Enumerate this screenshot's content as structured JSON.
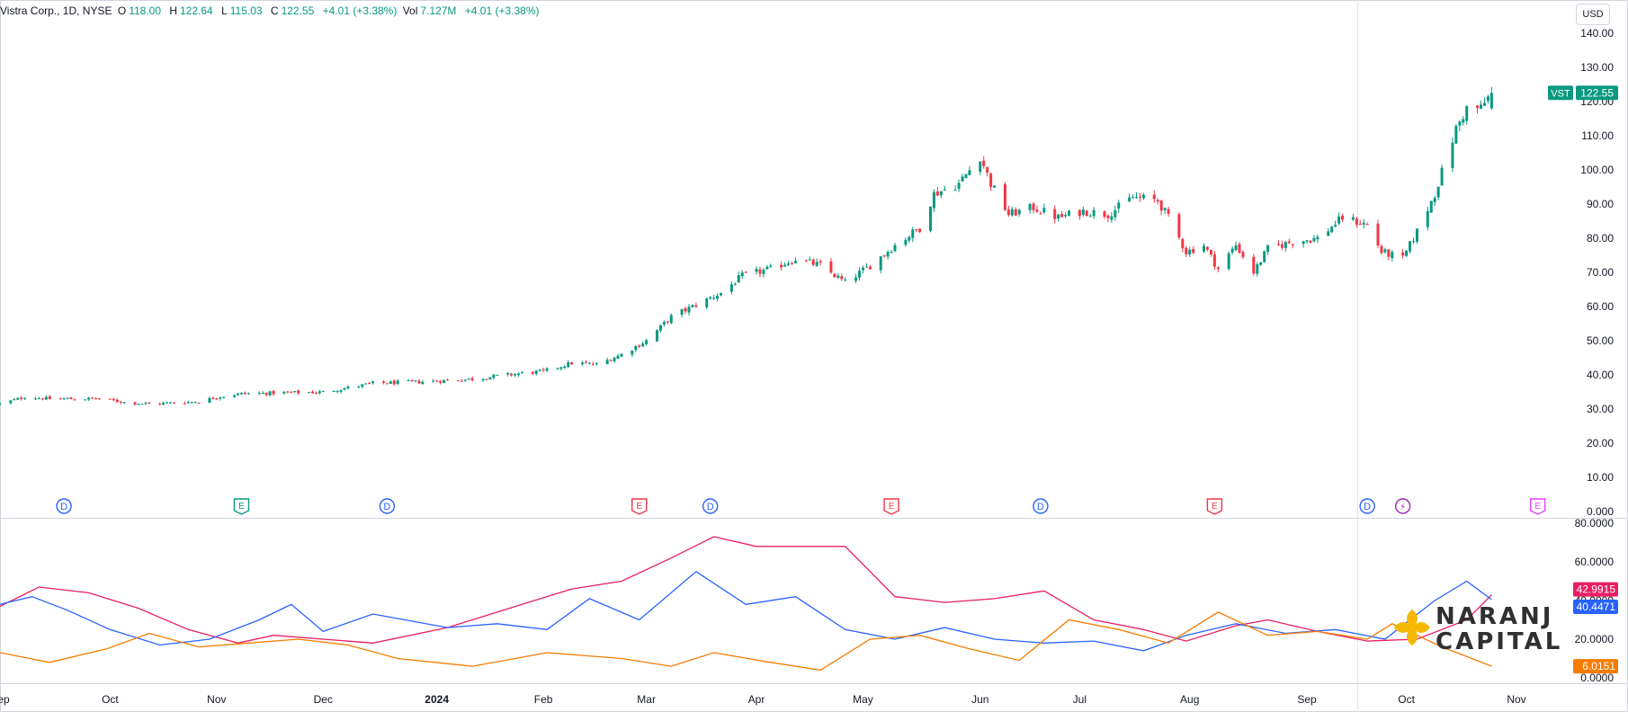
{
  "header": {
    "title": "Vistra Corp., 1D, NYSE",
    "o_label": "O",
    "o_value": "118.00",
    "h_label": "H",
    "h_value": "122.64",
    "l_label": "L",
    "l_value": "115.03",
    "c_label": "C",
    "c_value": "122.55",
    "change": "+4.01 (+3.38%)",
    "vol_label": "Vol",
    "vol_value": "7.127M",
    "vol_change": "+4.01 (+3.38%)"
  },
  "currency_button": "USD",
  "price_badge": {
    "symbol": "VST",
    "value": "122.55"
  },
  "indicator_badges": [
    {
      "value": "42.9915",
      "color": "#e91e63"
    },
    {
      "value": "40.4471",
      "color": "#2962ff"
    },
    {
      "value": "6.0151",
      "color": "#f57c00"
    }
  ],
  "event_markers": [
    {
      "type": "dividend",
      "label": "D",
      "date": "2023-09-19"
    },
    {
      "type": "earnings",
      "label": "E",
      "date": "2023-11-08"
    },
    {
      "type": "dividend",
      "label": "D",
      "date": "2023-12-19"
    },
    {
      "type": "earnings",
      "label": "E",
      "date": "2024-02-28"
    },
    {
      "type": "dividend",
      "label": "D",
      "date": "2024-03-19"
    },
    {
      "type": "earnings",
      "label": "E",
      "date": "2024-05-09"
    },
    {
      "type": "dividend",
      "label": "D",
      "date": "2024-06-20"
    },
    {
      "type": "earnings",
      "label": "E",
      "date": "2024-08-08"
    },
    {
      "type": "dividend",
      "label": "D",
      "date": "2024-09-20"
    },
    {
      "type": "split",
      "label": "⚡",
      "date": "2024-09-30"
    },
    {
      "type": "earnings",
      "label": "E",
      "date": "2024-11-07"
    }
  ],
  "logo": {
    "line1": "NARANJ",
    "line2": "CAPITAL"
  },
  "colors": {
    "up": "#089981",
    "down": "#f23645",
    "adx": "#e91e63",
    "di_plus": "#2962ff",
    "di_minus": "#f57c00",
    "accent": "#f5b800"
  },
  "chart_data": [
    {
      "type": "candlestick",
      "title": "Vistra Corp., 1D, NYSE",
      "ylim": [
        0,
        140
      ],
      "y_ticks": [
        "0.000",
        "10.00",
        "20.00",
        "30.00",
        "40.00",
        "50.00",
        "60.00",
        "70.00",
        "80.00",
        "90.00",
        "100.00",
        "110.00",
        "120.00",
        "130.00",
        "140.00"
      ],
      "x_ticks": [
        {
          "label": "Sep",
          "date": "2023-09-01"
        },
        {
          "label": "Oct",
          "date": "2023-10-02"
        },
        {
          "label": "Nov",
          "date": "2023-11-01"
        },
        {
          "label": "Dec",
          "date": "2023-12-01"
        },
        {
          "label": "2024",
          "date": "2024-01-02"
        },
        {
          "label": "Feb",
          "date": "2024-02-01"
        },
        {
          "label": "Mar",
          "date": "2024-03-01"
        },
        {
          "label": "Apr",
          "date": "2024-04-01"
        },
        {
          "label": "May",
          "date": "2024-05-01"
        },
        {
          "label": "Jun",
          "date": "2024-06-03"
        },
        {
          "label": "Jul",
          "date": "2024-07-01"
        },
        {
          "label": "Aug",
          "date": "2024-08-01"
        },
        {
          "label": "Sep",
          "date": "2024-09-03"
        },
        {
          "label": "Oct",
          "date": "2024-10-01"
        },
        {
          "label": "Nov",
          "date": "2024-11-01"
        }
      ],
      "close_path": [
        [
          "2023-09-01",
          31.5
        ],
        [
          "2023-09-08",
          33.5
        ],
        [
          "2023-09-15",
          33.0
        ],
        [
          "2023-09-29",
          33.0
        ],
        [
          "2023-10-06",
          32.0
        ],
        [
          "2023-10-13",
          31.5
        ],
        [
          "2023-10-27",
          32.2
        ],
        [
          "2023-11-01",
          33.5
        ],
        [
          "2023-11-08",
          34.5
        ],
        [
          "2023-11-22",
          34.8
        ],
        [
          "2023-12-01",
          35.0
        ],
        [
          "2023-12-15",
          37.5
        ],
        [
          "2023-12-29",
          38.0
        ],
        [
          "2024-01-12",
          38.8
        ],
        [
          "2024-01-26",
          40.5
        ],
        [
          "2024-02-01",
          41.0
        ],
        [
          "2024-02-09",
          43.5
        ],
        [
          "2024-02-16",
          43.0
        ],
        [
          "2024-02-23",
          46.0
        ],
        [
          "2024-03-01",
          50.0
        ],
        [
          "2024-03-08",
          57.0
        ],
        [
          "2024-03-15",
          60.5
        ],
        [
          "2024-03-22",
          64.0
        ],
        [
          "2024-03-28",
          69.0
        ],
        [
          "2024-04-05",
          71.0
        ],
        [
          "2024-04-12",
          74.0
        ],
        [
          "2024-04-19",
          72.0
        ],
        [
          "2024-04-26",
          67.0
        ],
        [
          "2024-05-03",
          72.0
        ],
        [
          "2024-05-10",
          78.0
        ],
        [
          "2024-05-17",
          83.0
        ],
        [
          "2024-05-21",
          93.0
        ],
        [
          "2024-05-28",
          96.0
        ],
        [
          "2024-06-03",
          104.0
        ],
        [
          "2024-06-06",
          96.0
        ],
        [
          "2024-06-11",
          87.0
        ],
        [
          "2024-06-18",
          89.0
        ],
        [
          "2024-06-25",
          86.0
        ],
        [
          "2024-07-02",
          88.0
        ],
        [
          "2024-07-09",
          87.0
        ],
        [
          "2024-07-16",
          92.0
        ],
        [
          "2024-07-23",
          91.0
        ],
        [
          "2024-07-26",
          86.0
        ],
        [
          "2024-07-31",
          76.0
        ],
        [
          "2024-08-05",
          78.0
        ],
        [
          "2024-08-09",
          71.0
        ],
        [
          "2024-08-14",
          78.0
        ],
        [
          "2024-08-19",
          70.0
        ],
        [
          "2024-08-23",
          77.0
        ],
        [
          "2024-08-30",
          79.0
        ],
        [
          "2024-09-06",
          80.0
        ],
        [
          "2024-09-13",
          86.0
        ],
        [
          "2024-09-20",
          84.0
        ],
        [
          "2024-09-24",
          76.0
        ],
        [
          "2024-09-30",
          74.0
        ],
        [
          "2024-10-04",
          82.0
        ],
        [
          "2024-10-09",
          93.0
        ],
        [
          "2024-10-15",
          112.0
        ],
        [
          "2024-10-18",
          118.0
        ],
        [
          "2024-10-22",
          118.0
        ],
        [
          "2024-10-25",
          122.55
        ]
      ],
      "last_price": 122.55
    },
    {
      "type": "line",
      "title": "",
      "ylim": [
        0,
        80
      ],
      "y_ticks": [
        "0.0000",
        "20.0000",
        "40.0000",
        "60.0000",
        "80.0000"
      ],
      "series": [
        {
          "name": "",
          "color": "#e91e63",
          "points": [
            [
              "2023-09-01",
              37.0
            ],
            [
              "2023-09-12",
              47.0
            ],
            [
              "2023-09-26",
              44.0
            ],
            [
              "2023-10-10",
              36.0
            ],
            [
              "2023-10-24",
              25.0
            ],
            [
              "2023-11-07",
              18.0
            ],
            [
              "2023-11-17",
              22.0
            ],
            [
              "2023-12-15",
              18.0
            ],
            [
              "2024-01-05",
              26.0
            ],
            [
              "2024-01-26",
              38.0
            ],
            [
              "2024-02-09",
              46.0
            ],
            [
              "2024-02-23",
              50.0
            ],
            [
              "2024-03-08",
              62.0
            ],
            [
              "2024-03-20",
              73.0
            ],
            [
              "2024-04-01",
              68.0
            ],
            [
              "2024-04-12",
              68.0
            ],
            [
              "2024-04-26",
              68.0
            ],
            [
              "2024-05-10",
              42.0
            ],
            [
              "2024-05-24",
              39.0
            ],
            [
              "2024-06-07",
              41.0
            ],
            [
              "2024-06-21",
              45.0
            ],
            [
              "2024-07-05",
              30.0
            ],
            [
              "2024-07-19",
              25.0
            ],
            [
              "2024-07-31",
              19.0
            ],
            [
              "2024-08-14",
              27.0
            ],
            [
              "2024-08-23",
              30.0
            ],
            [
              "2024-09-06",
              24.0
            ],
            [
              "2024-09-20",
              19.0
            ],
            [
              "2024-10-04",
              20.0
            ],
            [
              "2024-10-18",
              30.0
            ],
            [
              "2024-10-25",
              42.9915
            ]
          ]
        },
        {
          "name": "",
          "color": "#2962ff",
          "points": [
            [
              "2023-09-01",
              38.0
            ],
            [
              "2023-09-10",
              42.0
            ],
            [
              "2023-09-20",
              35.0
            ],
            [
              "2023-10-02",
              25.0
            ],
            [
              "2023-10-16",
              17.0
            ],
            [
              "2023-10-30",
              20.0
            ],
            [
              "2023-11-13",
              30.0
            ],
            [
              "2023-11-22",
              38.0
            ],
            [
              "2023-12-01",
              24.0
            ],
            [
              "2023-12-15",
              33.0
            ],
            [
              "2024-01-05",
              26.0
            ],
            [
              "2024-01-19",
              28.0
            ],
            [
              "2024-02-02",
              25.0
            ],
            [
              "2024-02-14",
              41.0
            ],
            [
              "2024-02-28",
              30.0
            ],
            [
              "2024-03-15",
              55.0
            ],
            [
              "2024-03-29",
              38.0
            ],
            [
              "2024-04-12",
              42.0
            ],
            [
              "2024-04-26",
              25.0
            ],
            [
              "2024-05-10",
              20.0
            ],
            [
              "2024-05-24",
              26.0
            ],
            [
              "2024-06-07",
              20.0
            ],
            [
              "2024-06-21",
              18.0
            ],
            [
              "2024-07-05",
              19.0
            ],
            [
              "2024-07-19",
              14.0
            ],
            [
              "2024-07-31",
              22.0
            ],
            [
              "2024-08-14",
              28.0
            ],
            [
              "2024-08-28",
              23.0
            ],
            [
              "2024-09-11",
              25.0
            ],
            [
              "2024-09-25",
              20.0
            ],
            [
              "2024-10-09",
              40.0
            ],
            [
              "2024-10-18",
              50.0
            ],
            [
              "2024-10-25",
              40.4471
            ]
          ]
        },
        {
          "name": "",
          "color": "#f57c00",
          "points": [
            [
              "2023-09-01",
              13.0
            ],
            [
              "2023-09-15",
              8.0
            ],
            [
              "2023-10-01",
              15.0
            ],
            [
              "2023-10-13",
              23.0
            ],
            [
              "2023-10-27",
              16.0
            ],
            [
              "2023-11-10",
              18.0
            ],
            [
              "2023-11-24",
              20.0
            ],
            [
              "2023-12-08",
              17.0
            ],
            [
              "2023-12-22",
              10.0
            ],
            [
              "2024-01-12",
              6.0
            ],
            [
              "2024-02-02",
              13.0
            ],
            [
              "2024-02-23",
              10.0
            ],
            [
              "2024-03-08",
              6.0
            ],
            [
              "2024-03-20",
              13.0
            ],
            [
              "2024-04-05",
              8.0
            ],
            [
              "2024-04-19",
              4.0
            ],
            [
              "2024-05-03",
              20.0
            ],
            [
              "2024-05-17",
              22.0
            ],
            [
              "2024-05-31",
              15.0
            ],
            [
              "2024-06-14",
              9.0
            ],
            [
              "2024-06-28",
              30.0
            ],
            [
              "2024-07-12",
              25.0
            ],
            [
              "2024-07-26",
              18.0
            ],
            [
              "2024-08-09",
              34.0
            ],
            [
              "2024-08-23",
              22.0
            ],
            [
              "2024-09-06",
              24.0
            ],
            [
              "2024-09-20",
              20.0
            ],
            [
              "2024-09-27",
              28.0
            ],
            [
              "2024-10-11",
              16.0
            ],
            [
              "2024-10-25",
              6.0151
            ]
          ]
        }
      ]
    }
  ]
}
